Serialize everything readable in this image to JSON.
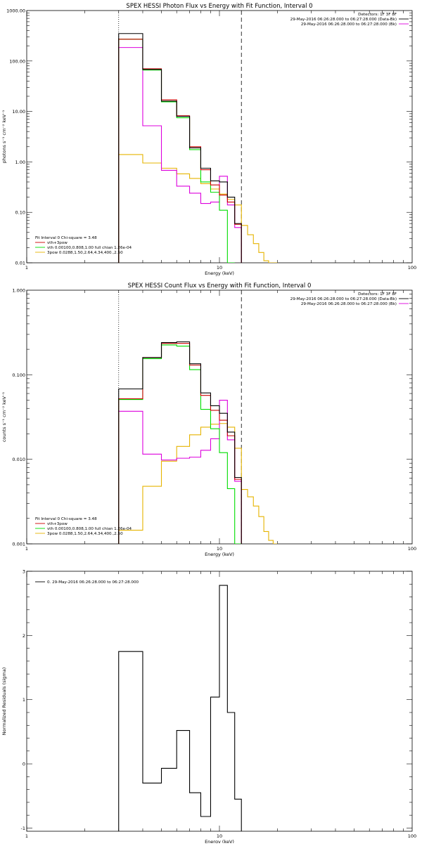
{
  "colors": {
    "black": "#000000",
    "red": "#cc0000",
    "green": "#00dd00",
    "magenta": "#dd00dd",
    "orange": "#e6b400"
  },
  "chart_data": [
    {
      "type": "line",
      "title": "SPEX HESSI Photon Flux vs Energy with Fit Function, Interval 0",
      "xlabel": "Energy (keV)",
      "ylabel": "photons s⁻¹ cm⁻² keV⁻¹",
      "xscale": "log",
      "yscale": "log",
      "xlim": [
        1,
        100
      ],
      "ylim": [
        0.01,
        1000
      ],
      "xticks": [
        {
          "v": 1,
          "label": "1"
        },
        {
          "v": 10,
          "label": "10"
        },
        {
          "v": 100,
          "label": "100"
        }
      ],
      "yticks": [
        {
          "v": 0.01,
          "label": "0.01"
        },
        {
          "v": 0.1,
          "label": "0.10"
        },
        {
          "v": 1,
          "label": "1.00"
        },
        {
          "v": 10,
          "label": "10.00"
        },
        {
          "v": 100,
          "label": "100.00"
        },
        {
          "v": 1000,
          "label": "1000.00"
        }
      ],
      "bin_edges": [
        3,
        4,
        5,
        6,
        7,
        8,
        9,
        10,
        11,
        12,
        13,
        14,
        15,
        16,
        17,
        18,
        19,
        20
      ],
      "vlines": [
        {
          "x": 3,
          "style": "dotted"
        },
        {
          "x": 13,
          "style": "dashed"
        }
      ],
      "legend_top": [
        "Detectors: 1F 3F 8F",
        "29-May-2016 06:26:28.000 to 06:27:28.000 (Data-Bk)",
        "29-May-2016 06:26:28.000 to 06:27:28.000 (Bk)"
      ],
      "legend_top_colors": [
        "",
        "black",
        "magenta"
      ],
      "legend_bottom": [
        "Fit Interval  0   Chi-square = 3.48",
        "vth+3pow",
        "vth 0.00100,0.808,1.00  full chian 1.26e-04",
        "3pow 0.0288,1.50,2.64,4.34,400.,2.50"
      ],
      "legend_bottom_colors": [
        "",
        "red",
        "green",
        "orange"
      ],
      "series": [
        {
          "name": "Data-Bk",
          "color": "black",
          "values": [
            350,
            68,
            16,
            8,
            1.9,
            0.75,
            0.42,
            0.4,
            0.2,
            0.06
          ]
        },
        {
          "name": "vth+3pow",
          "color": "red",
          "values": [
            270,
            70,
            17,
            8.2,
            2.0,
            0.7,
            0.35,
            0.22,
            0.16,
            0.058
          ]
        },
        {
          "name": "vth",
          "color": "green",
          "values": [
            270,
            66,
            15.5,
            7.5,
            1.75,
            0.4,
            0.25,
            0.11,
            0.008
          ]
        },
        {
          "name": "Bk",
          "color": "magenta",
          "values": [
            185,
            5.2,
            0.68,
            0.33,
            0.24,
            0.15,
            0.16,
            0.52,
            0.14,
            0.05
          ]
        },
        {
          "name": "3pow",
          "color": "orange",
          "values": [
            1.4,
            0.95,
            0.75,
            0.58,
            0.47,
            0.37,
            0.29,
            0.23,
            0.18,
            0.14,
            0.055,
            0.036,
            0.024,
            0.016,
            0.011,
            0.009,
            0.008
          ]
        }
      ]
    },
    {
      "type": "line",
      "title": "SPEX HESSI Count Flux vs Energy with Fit Function, Interval 0",
      "xlabel": "Energy (keV)",
      "ylabel": "counts s⁻¹ cm⁻² keV⁻¹",
      "xscale": "log",
      "yscale": "log",
      "xlim": [
        1,
        100
      ],
      "ylim": [
        0.001,
        1
      ],
      "xticks": [
        {
          "v": 1,
          "label": "1"
        },
        {
          "v": 10,
          "label": "10"
        },
        {
          "v": 100,
          "label": "100"
        }
      ],
      "yticks": [
        {
          "v": 0.001,
          "label": "0.001"
        },
        {
          "v": 0.01,
          "label": "0.010"
        },
        {
          "v": 0.1,
          "label": "0.100"
        },
        {
          "v": 1,
          "label": "1.000"
        }
      ],
      "bin_edges": [
        3,
        4,
        5,
        6,
        7,
        8,
        9,
        10,
        11,
        12,
        13,
        14,
        15,
        16,
        17,
        18,
        19,
        20
      ],
      "vlines": [
        {
          "x": 3,
          "style": "dotted"
        },
        {
          "x": 13,
          "style": "dashed"
        }
      ],
      "legend_top": [
        "Detectors: 1F 3F 8F",
        "29-May-2016 06:26:28.000 to 06:27:28.000 (Data-Bk)",
        "29-May-2016 06:26:28.000 to 06:27:28.000 (Bk)"
      ],
      "legend_top_colors": [
        "",
        "black",
        "magenta"
      ],
      "legend_bottom": [
        "Fit Interval  0   Chi-square = 3.48",
        "vth+3pow",
        "vth 0.00100,0.808,1.00  full chian 1.26e-04",
        "3pow 0.0288,1.50,2.64,4.34,400.,2.50"
      ],
      "legend_bottom_colors": [
        "",
        "red",
        "green",
        "orange"
      ],
      "series": [
        {
          "name": "Data-Bk",
          "color": "black",
          "values": [
            0.068,
            0.16,
            0.24,
            0.245,
            0.135,
            0.061,
            0.043,
            0.035,
            0.021,
            0.0061
          ]
        },
        {
          "name": "vth+3pow",
          "color": "red",
          "values": [
            0.052,
            0.16,
            0.235,
            0.235,
            0.13,
            0.057,
            0.038,
            0.029,
            0.019,
            0.0058
          ]
        },
        {
          "name": "vth",
          "color": "green",
          "values": [
            0.051,
            0.155,
            0.225,
            0.218,
            0.115,
            0.039,
            0.023,
            0.012,
            0.0045,
            0.0005
          ]
        },
        {
          "name": "Bk",
          "color": "magenta",
          "values": [
            0.037,
            0.0115,
            0.0098,
            0.0103,
            0.0106,
            0.0128,
            0.0175,
            0.05,
            0.017,
            0.0055
          ]
        },
        {
          "name": "3pow",
          "color": "orange",
          "values": [
            0.00145,
            0.0048,
            0.0095,
            0.0142,
            0.0195,
            0.024,
            0.026,
            0.0265,
            0.024,
            0.0135,
            0.0044,
            0.0036,
            0.0028,
            0.0021,
            0.0014,
            0.0011,
            0.0009
          ]
        }
      ]
    },
    {
      "type": "line",
      "title": "",
      "xlabel": "Energy (keV)",
      "ylabel": "Normalized Residuals (sigma)",
      "xscale": "log",
      "yscale": "linear",
      "xlim": [
        1,
        100
      ],
      "ylim": [
        -1.05,
        3
      ],
      "xticks": [
        {
          "v": 1,
          "label": "1"
        },
        {
          "v": 10,
          "label": "10"
        },
        {
          "v": 100,
          "label": "100"
        }
      ],
      "yticks": [
        {
          "v": -1,
          "label": "-1"
        },
        {
          "v": 0,
          "label": "0"
        },
        {
          "v": 1,
          "label": "1"
        },
        {
          "v": 2,
          "label": "2"
        },
        {
          "v": 3,
          "label": "3"
        }
      ],
      "legend_top": [
        "0. 29-May-2016 06:26:28.000 to 06:27:28.000"
      ],
      "bin_edges": [
        3,
        4,
        5,
        6,
        7,
        8,
        9,
        10,
        11,
        12,
        13
      ],
      "series": [
        {
          "name": "",
          "color": "black",
          "values": [
            1.75,
            -0.3,
            -0.07,
            0.52,
            -0.45,
            -0.82,
            1.04,
            2.78,
            0.8,
            -0.55
          ]
        }
      ]
    }
  ]
}
